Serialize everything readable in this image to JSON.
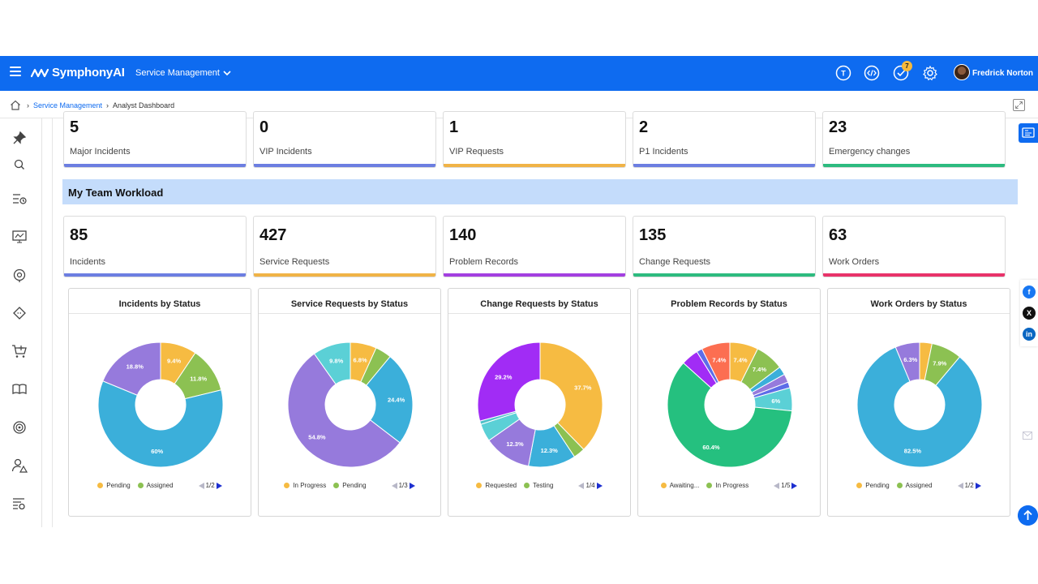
{
  "header": {
    "brand": "SymphonyAI",
    "module": "Service Management",
    "notification_count": "7",
    "user_name": "Fredrick Norton"
  },
  "breadcrumb": {
    "link": "Service Management",
    "current": "Analyst Dashboard"
  },
  "top_cards": [
    {
      "value": "5",
      "label": "Major Incidents",
      "color": "#6c7ee1"
    },
    {
      "value": "0",
      "label": "VIP Incidents",
      "color": "#6c7ee1"
    },
    {
      "value": "1",
      "label": "VIP Requests",
      "color": "#f0b347"
    },
    {
      "value": "2",
      "label": "P1 Incidents",
      "color": "#6c7ee1"
    },
    {
      "value": "23",
      "label": "Emergency changes",
      "color": "#2dbb7f"
    }
  ],
  "section": {
    "title": "My Team Workload"
  },
  "team_cards": [
    {
      "value": "85",
      "label": "Incidents",
      "color": "#6c7ee1"
    },
    {
      "value": "427",
      "label": "Service Requests",
      "color": "#f0b347"
    },
    {
      "value": "140",
      "label": "Problem Records",
      "color": "#a33fe0"
    },
    {
      "value": "135",
      "label": "Change Requests",
      "color": "#2dbb7f"
    },
    {
      "value": "63",
      "label": "Work Orders",
      "color": "#e8336a"
    }
  ],
  "chart_data": [
    {
      "type": "pie",
      "title": "Incidents by Status",
      "slices": [
        {
          "value": 9.4,
          "label": "9.4%",
          "color": "#f6bb42"
        },
        {
          "value": 11.8,
          "label": "11.8%",
          "color": "#8cc152"
        },
        {
          "value": 60,
          "label": "60%",
          "color": "#3bafda"
        },
        {
          "value": 18.8,
          "label": "18.8%",
          "color": "#967adc"
        }
      ],
      "legend": [
        {
          "name": "Pending",
          "color": "#f6bb42"
        },
        {
          "name": "Assigned",
          "color": "#8cc152"
        }
      ],
      "pager": "1/2"
    },
    {
      "type": "pie",
      "title": "Service Requests by Status",
      "slices": [
        {
          "value": 6.8,
          "label": "6.8%",
          "color": "#f6bb42"
        },
        {
          "value": 4.2,
          "label": "",
          "color": "#8cc152"
        },
        {
          "value": 24.4,
          "label": "24.4%",
          "color": "#3bafda"
        },
        {
          "value": 54.8,
          "label": "54.8%",
          "color": "#967adc"
        },
        {
          "value": 9.8,
          "label": "9.8%",
          "color": "#5bd0d6"
        }
      ],
      "legend": [
        {
          "name": "In Progress",
          "color": "#f6bb42"
        },
        {
          "name": "Pending",
          "color": "#8cc152"
        }
      ],
      "pager": "1/3"
    },
    {
      "type": "pie",
      "title": "Change Requests by Status",
      "slices": [
        {
          "value": 37.7,
          "label": "37.7%",
          "color": "#f6bb42"
        },
        {
          "value": 3.0,
          "label": "",
          "color": "#8cc152"
        },
        {
          "value": 12.3,
          "label": "12.3%",
          "color": "#3bafda"
        },
        {
          "value": 12.3,
          "label": "12.3%",
          "color": "#967adc"
        },
        {
          "value": 4.6,
          "label": "",
          "color": "#5bd0d6"
        },
        {
          "value": 0.9,
          "label": "",
          "color": "#4fc1c9"
        },
        {
          "value": 29.2,
          "label": "29.2%",
          "color": "#a12cf5"
        }
      ],
      "legend": [
        {
          "name": "Requested",
          "color": "#f6bb42"
        },
        {
          "name": "Testing",
          "color": "#8cc152"
        }
      ],
      "pager": "1/4"
    },
    {
      "type": "pie",
      "title": "Problem Records by Status",
      "slices": [
        {
          "value": 7.4,
          "label": "7.4%",
          "color": "#f6bb42"
        },
        {
          "value": 7.4,
          "label": "7.4%",
          "color": "#8cc152"
        },
        {
          "value": 2.2,
          "label": "",
          "color": "#3bafda"
        },
        {
          "value": 2.2,
          "label": "",
          "color": "#967adc"
        },
        {
          "value": 1.5,
          "label": "",
          "color": "#5d6de8"
        },
        {
          "value": 6,
          "label": "6%",
          "color": "#5bd0d6"
        },
        {
          "value": 60.4,
          "label": "60.4%",
          "color": "#25c07f"
        },
        {
          "value": 4.5,
          "label": "",
          "color": "#a12cf5"
        },
        {
          "value": 1.5,
          "label": "",
          "color": "#5d6de8"
        },
        {
          "value": 7.4,
          "label": "7.4%",
          "color": "#fc6e51"
        }
      ],
      "legend": [
        {
          "name": "Awaiting...",
          "color": "#f6bb42"
        },
        {
          "name": "In Progress",
          "color": "#8cc152"
        }
      ],
      "pager": "1/5"
    },
    {
      "type": "pie",
      "title": "Work Orders by Status",
      "slices": [
        {
          "value": 3.2,
          "label": "",
          "color": "#f6bb42"
        },
        {
          "value": 7.9,
          "label": "7.9%",
          "color": "#8cc152"
        },
        {
          "value": 82.5,
          "label": "82.5%",
          "color": "#3bafda"
        },
        {
          "value": 6.3,
          "label": "6.3%",
          "color": "#967adc"
        }
      ],
      "legend": [
        {
          "name": "Pending",
          "color": "#f6bb42"
        },
        {
          "name": "Assigned",
          "color": "#8cc152"
        }
      ],
      "pager": "1/2"
    }
  ]
}
